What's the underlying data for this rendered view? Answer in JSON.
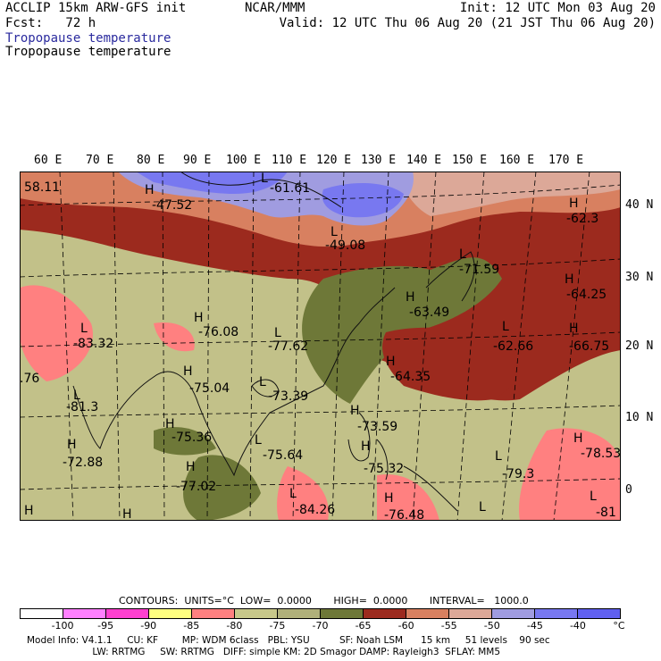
{
  "header": {
    "left1": "ACCLIP 15km ARW-GFS init",
    "left2": "Fcst:   72 h",
    "left3": "Tropopause temperature",
    "left4": "Tropopause temperature",
    "center": "NCAR/MMM",
    "right1": "Init: 12 UTC Mon 03 Aug 20",
    "right2": "Valid: 12 UTC Thu 06 Aug 20 (21 JST Thu 06 Aug 20)"
  },
  "map": {
    "lon_labels": [
      "60 E",
      "70 E",
      "80 E",
      "90 E",
      "100 E",
      "110 E",
      "120 E",
      "130 E",
      "140 E",
      "150 E",
      "160 E",
      "170 E"
    ],
    "lat_labels": [
      "40 N",
      "30 N",
      "20 N",
      "10 N",
      "0"
    ],
    "pressure_centers": [
      {
        "type": "H",
        "value": "-47.52"
      },
      {
        "type": "L",
        "value": "-61.61"
      },
      {
        "type": "L",
        "value": "-49.08"
      },
      {
        "type": "H",
        "value": "-62.3"
      },
      {
        "type": "L",
        "value": "-71.59"
      },
      {
        "type": "H",
        "value": "-64.25"
      },
      {
        "type": "H",
        "value": "-63.49"
      },
      {
        "type": "L",
        "value": "-83.32"
      },
      {
        "type": "H",
        "value": "-76.08"
      },
      {
        "type": "L",
        "value": "-77.62"
      },
      {
        "type": "L",
        "value": "-62.66"
      },
      {
        "type": "H",
        "value": "-66.75"
      },
      {
        "type": "H",
        "value": "-75.04"
      },
      {
        "type": "L",
        "value": "-73.39"
      },
      {
        "type": "H",
        "value": "-64.35"
      },
      {
        "type": "L",
        "value": "-81.3"
      },
      {
        "type": "H",
        "value": "-75.36"
      },
      {
        "type": "H",
        "value": "-73.59"
      },
      {
        "type": "H",
        "value": "-72.88"
      },
      {
        "type": "L",
        "value": "-75.64"
      },
      {
        "type": "H",
        "value": "-75.32"
      },
      {
        "type": "L",
        "value": "-79.3"
      },
      {
        "type": "H",
        "value": "-78.53"
      },
      {
        "type": "H",
        "value": "-77.02"
      },
      {
        "type": "L",
        "value": "-84.26"
      },
      {
        "type": "H",
        "value": "-76.48"
      },
      {
        "type": "L",
        "value": "-81"
      },
      {
        "type": "",
        "value": "58.11"
      },
      {
        "type": "",
        "value": ".76"
      },
      {
        "type": "H",
        "value": ""
      },
      {
        "type": "H",
        "value": ""
      },
      {
        "type": "L",
        "value": ""
      }
    ]
  },
  "contours_line": "CONTOURS:  UNITS=°C  LOW=  0.0000       HIGH=  0.0000       INTERVAL=   1000.0",
  "colorbar": {
    "colors": [
      "#ffffff",
      "#ff80ff",
      "#ff40d0",
      "#ffff80",
      "#ff8080",
      "#c8c88a",
      "#b0b07a",
      "#6e7838",
      "#9c2a1e",
      "#d88060",
      "#dca898",
      "#a09ce0",
      "#7878f0",
      "#6060f0"
    ],
    "ticks": [
      "-100",
      "-95",
      "-90",
      "-85",
      "-80",
      "-75",
      "-70",
      "-65",
      "-60",
      "-55",
      "-50",
      "-45",
      "-40"
    ],
    "unit": "°C"
  },
  "footer": {
    "line1": "Model Info: V4.1.1     CU: KF        MP: WDM 6class   PBL: YSU          SF: Noah LSM      15 km     51 levels    90 sec",
    "line2": "                      LW: RRTMG     SW: RRTMG   DIFF: simple KM: 2D Smagor DAMP: Rayleigh3  SFLAY: MM5"
  }
}
